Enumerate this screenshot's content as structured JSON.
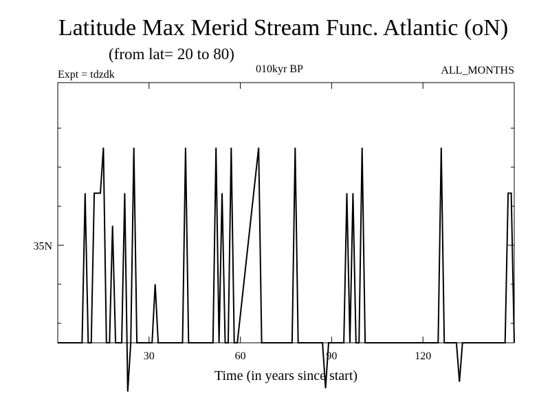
{
  "header": {
    "title": "Latitude Max Merid Stream Func. Atlantic (oN)",
    "subtitle": "(from lat= 20 to 80)",
    "expt": "Expt = tdzdk",
    "center_label": "010kyr BP",
    "months_label": "ALL_MONTHS"
  },
  "chart_data": {
    "type": "line",
    "title": "Latitude Max Merid Stream Func. Atlantic (oN)",
    "subtitle": "(from lat= 20 to 80)",
    "xlabel": "Time (in years since start)",
    "ylabel": "",
    "xlim": [
      0,
      150
    ],
    "ylim": [
      20,
      60
    ],
    "x_ticks": [
      30,
      60,
      90,
      120
    ],
    "x_tick_labels": [
      "30",
      "60",
      "90",
      "120"
    ],
    "y_major_ticks": [
      35
    ],
    "y_tick_labels": [
      "35N"
    ],
    "y_minor_ticks": [
      23,
      29,
      41,
      47,
      53
    ],
    "grid": false,
    "series": [
      {
        "name": "",
        "color": "#000000",
        "x": [
          0,
          7,
          8,
          9,
          10,
          11,
          12,
          13,
          14,
          15,
          16,
          17,
          18,
          19,
          20,
          21,
          22,
          23,
          24,
          25,
          26,
          27,
          28,
          29,
          30,
          31,
          32,
          33,
          41,
          42,
          43,
          50,
          51,
          52,
          53,
          54,
          55,
          56,
          57,
          58,
          59,
          66,
          67,
          68,
          77,
          78,
          79,
          87,
          88,
          89,
          94,
          95,
          96,
          97,
          98,
          99,
          100,
          101,
          124,
          125,
          126,
          127,
          131,
          132,
          133,
          147,
          148,
          149,
          150
        ],
        "y": [
          20,
          20,
          20,
          43,
          20,
          20,
          43,
          43,
          43,
          50,
          20,
          20,
          38,
          20,
          20,
          20,
          43,
          12.5,
          20,
          50,
          20,
          20,
          20,
          20,
          20,
          20,
          29,
          20,
          20,
          50,
          20,
          20,
          20,
          50,
          20,
          43,
          20,
          20,
          50,
          20,
          20,
          50,
          20,
          20,
          20,
          50,
          20,
          20,
          13,
          20,
          20,
          43,
          20,
          43,
          20,
          20,
          50,
          20,
          20,
          20,
          50,
          20,
          20,
          14,
          20,
          20,
          43,
          43,
          20
        ]
      }
    ]
  }
}
